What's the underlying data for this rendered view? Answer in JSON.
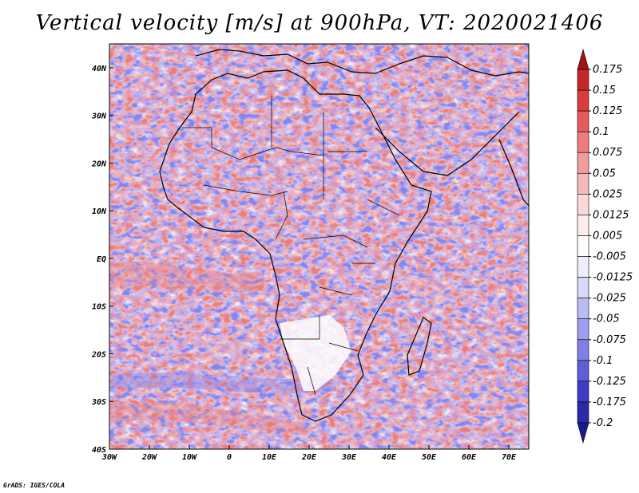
{
  "title": "Vertical velocity [m/s] at 900hPa, VT: 2020021406",
  "credit": "GrADS: IGES/COLA",
  "map": {
    "lon_range": [
      -30,
      75
    ],
    "lat_range": [
      -40,
      45
    ],
    "x_ticks": [
      "30W",
      "20W",
      "10W",
      "0",
      "10E",
      "20E",
      "30E",
      "40E",
      "50E",
      "60E",
      "70E"
    ],
    "y_ticks": [
      "40N",
      "30N",
      "20N",
      "10N",
      "EQ",
      "10S",
      "20S",
      "30S",
      "40S"
    ],
    "field_colors": {
      "negative": "#6f6fe6",
      "positive": "#e06060",
      "neutral": "#ffffff"
    }
  },
  "colorbar": {
    "labels": [
      "0.175",
      "0.15",
      "0.125",
      "0.1",
      "0.075",
      "0.05",
      "0.025",
      "0.0125",
      "0.005",
      "-0.005",
      "-0.0125",
      "-0.025",
      "-0.05",
      "-0.075",
      "-0.1",
      "-0.125",
      "-0.175",
      "-0.2"
    ],
    "colors": [
      "#a01414",
      "#c42828",
      "#d83c3c",
      "#e55a5a",
      "#ee7c7c",
      "#f29c9c",
      "#f6baba",
      "#fad8d8",
      "#fdeeee",
      "#ffffff",
      "#eeeefd",
      "#d8d8fa",
      "#bcbcf5",
      "#9e9eee",
      "#7f7fe6",
      "#5e5ed8",
      "#3c3cc4",
      "#2a2aa8",
      "#1a1a90"
    ]
  }
}
